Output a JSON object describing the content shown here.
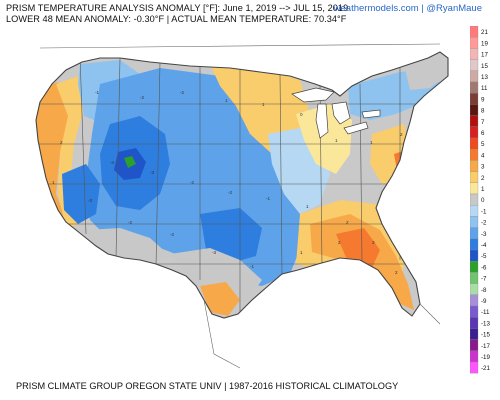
{
  "header": {
    "line1": "PRISM TEMPERATURE ANALYSIS ANOMALY [°F]: June 1, 2019 --> JUL 15, 2019",
    "line2": "LOWER 48 MEAN ANOMALY: -0.30°F | ACTUAL MEAN TEMPERATURE: 70.34°F",
    "credit": "weathermodels.com | @RyanMaue"
  },
  "footer": {
    "text": "PRISM CLIMATE GROUP OREGON STATE UNIV | 1987-2016 HISTORICAL CLIMATOLOGY"
  },
  "legend": {
    "items": [
      {
        "label": "21",
        "color": "#ff7a7a"
      },
      {
        "label": "19",
        "color": "#ff9a9a"
      },
      {
        "label": "17",
        "color": "#f2b4b4"
      },
      {
        "label": "15",
        "color": "#e0c8c8"
      },
      {
        "label": "13",
        "color": "#cdaaa6"
      },
      {
        "label": "11",
        "color": "#a07a72"
      },
      {
        "label": "9",
        "color": "#7a3e34"
      },
      {
        "label": "8",
        "color": "#5a1810"
      },
      {
        "label": "7",
        "color": "#b01010"
      },
      {
        "label": "6",
        "color": "#d82020"
      },
      {
        "label": "5",
        "color": "#f04a20"
      },
      {
        "label": "4",
        "color": "#f57a30"
      },
      {
        "label": "3",
        "color": "#f7a848"
      },
      {
        "label": "2",
        "color": "#f9cd6c"
      },
      {
        "label": "1",
        "color": "#fbe79a"
      },
      {
        "label": "0",
        "color": "#c8c8c8"
      },
      {
        "label": "-1",
        "color": "#b7d8f3"
      },
      {
        "label": "-2",
        "color": "#8ec3ef"
      },
      {
        "label": "-3",
        "color": "#5ea3ea"
      },
      {
        "label": "-4",
        "color": "#2e7ee0"
      },
      {
        "label": "-5",
        "color": "#1f55c8"
      },
      {
        "label": "-6",
        "color": "#2ca02c"
      },
      {
        "label": "-7",
        "color": "#6fc46f"
      },
      {
        "label": "-8",
        "color": "#a8dda8"
      },
      {
        "label": "-9",
        "color": "#a68fd8"
      },
      {
        "label": "-11",
        "color": "#7a5ad0"
      },
      {
        "label": "-13",
        "color": "#5a35b5"
      },
      {
        "label": "-15",
        "color": "#3a1f90"
      },
      {
        "label": "-17",
        "color": "#8a1a8a"
      },
      {
        "label": "-19",
        "color": "#cc33cc"
      },
      {
        "label": "-21",
        "color": "#ff55ff"
      }
    ]
  },
  "colors": {
    "land_neutral": "#c9c9c9",
    "water": "#ffffff",
    "outline": "#444444"
  }
}
